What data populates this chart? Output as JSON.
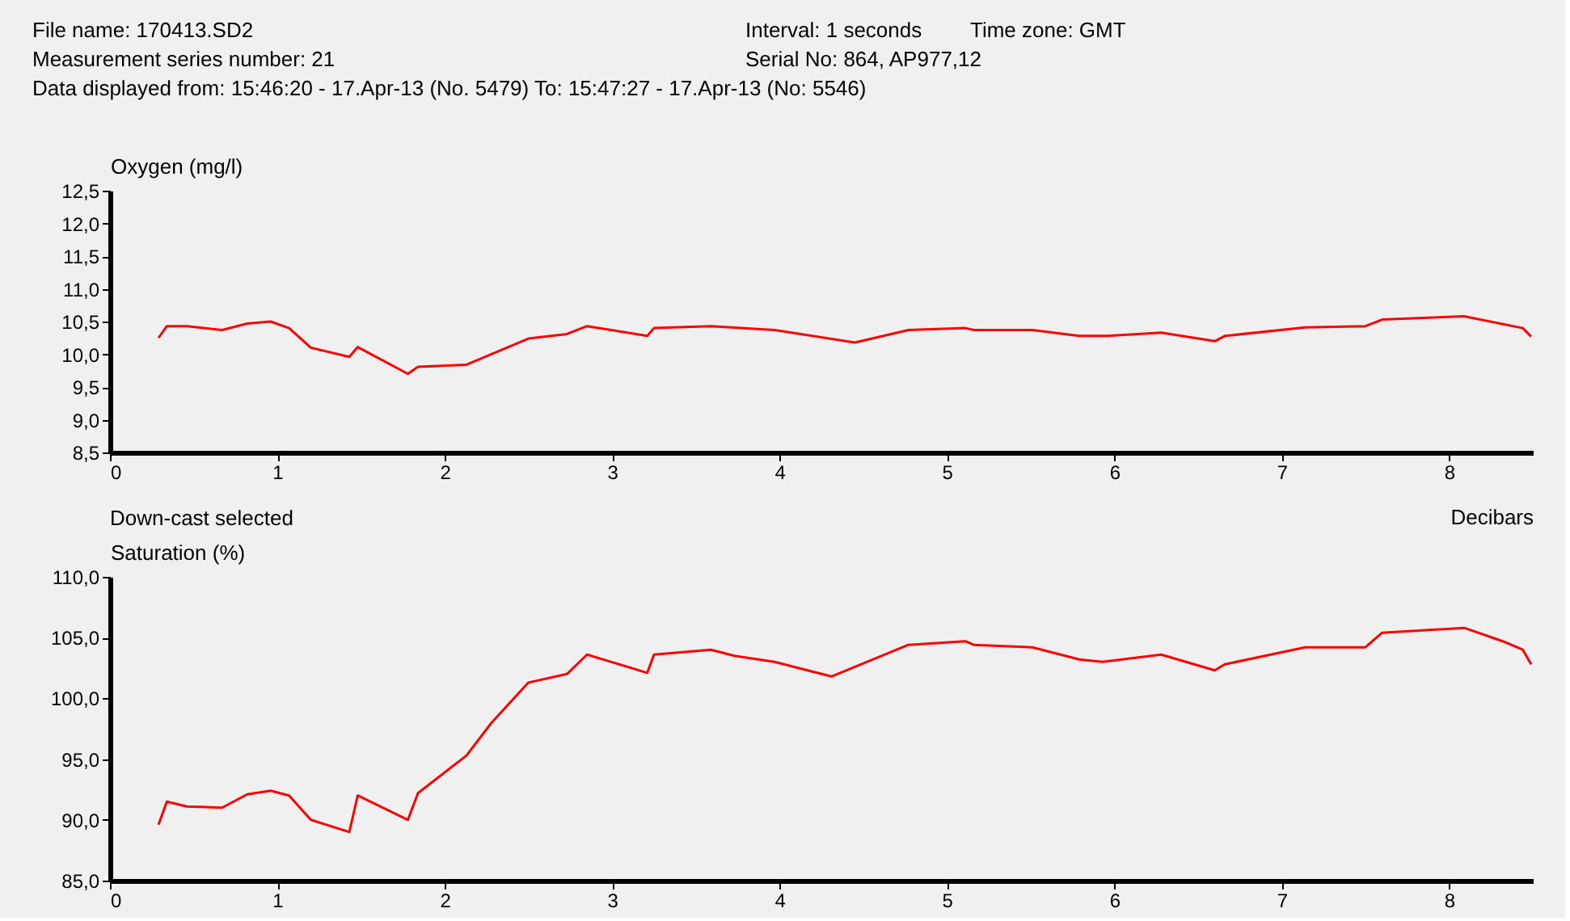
{
  "chart_data": [
    {
      "type": "line",
      "ylabel": "Oxygen (mg/l)",
      "annotations": [
        "File name: 170413.SD2",
        "Measurement series number: 21",
        "Data displayed from: 15:46:20 - 17.Apr-13 (No. 5479)   To: 15:47:27 - 17.Apr-13 (No: 5546)",
        "Interval: 1 seconds",
        "Time zone: GMT",
        "Serial No: 864, AP977,12"
      ],
      "series": [
        {
          "color": "#ff0000",
          "x": [
            0.29,
            0.34,
            0.46,
            0.67,
            0.82,
            0.96,
            1.07,
            1.2,
            1.43,
            1.48,
            1.78,
            1.84,
            2.13,
            2.5,
            2.73,
            2.85,
            3.21,
            3.25,
            3.59,
            3.97,
            4.45,
            4.77,
            5.11,
            5.16,
            5.51,
            5.79,
            5.96,
            6.28,
            6.6,
            6.66,
            7.14,
            7.5,
            7.6,
            8.09,
            8.44,
            8.49
          ],
          "values": [
            10.25,
            10.43,
            10.43,
            10.37,
            10.47,
            10.5,
            10.4,
            10.1,
            9.96,
            10.11,
            9.7,
            9.81,
            9.84,
            10.24,
            10.31,
            10.43,
            10.28,
            10.4,
            10.43,
            10.37,
            10.18,
            10.37,
            10.4,
            10.37,
            10.37,
            10.28,
            10.28,
            10.33,
            10.2,
            10.28,
            10.41,
            10.43,
            10.53,
            10.58,
            10.4,
            10.27
          ]
        }
      ],
      "xlim": [
        0,
        8.5
      ],
      "xticks": [
        0,
        1,
        2,
        3,
        4,
        5,
        6,
        7,
        8
      ],
      "ylim": [
        8.5,
        12.5
      ],
      "yticks": [
        {
          "value": 8.5,
          "label": "8,5"
        },
        {
          "value": 9,
          "label": "9,0"
        },
        {
          "value": 9.5,
          "label": "9,5"
        },
        {
          "value": 10,
          "label": "10,0"
        },
        {
          "value": 10.5,
          "label": "10,5"
        },
        {
          "value": 11,
          "label": "11,0"
        },
        {
          "value": 11.5,
          "label": "11,5"
        },
        {
          "value": 12,
          "label": "12,0"
        },
        {
          "value": 12.5,
          "label": "12,5"
        }
      ],
      "grid": false,
      "marker": "none",
      "line_style": "solid"
    },
    {
      "type": "line",
      "ylabel": "Saturation (%)",
      "xlabel": "Decibars",
      "annotations": [
        "Down-cast selected"
      ],
      "series": [
        {
          "color": "#ff0000",
          "x": [
            0.29,
            0.34,
            0.46,
            0.67,
            0.82,
            0.96,
            1.07,
            1.2,
            1.43,
            1.48,
            1.78,
            1.84,
            2.13,
            2.28,
            2.5,
            2.73,
            2.85,
            3.21,
            3.25,
            3.59,
            3.73,
            3.97,
            4.31,
            4.77,
            5.11,
            5.16,
            5.51,
            5.79,
            5.93,
            6.28,
            6.6,
            6.66,
            7.14,
            7.5,
            7.6,
            8.09,
            8.32,
            8.44,
            8.49
          ],
          "values": [
            89.6,
            91.5,
            91.1,
            91.0,
            92.1,
            92.4,
            92.0,
            90.0,
            89.0,
            92.0,
            90.0,
            92.2,
            95.3,
            98.0,
            101.3,
            102.0,
            103.6,
            102.1,
            103.6,
            104.0,
            103.5,
            103.0,
            101.8,
            104.4,
            104.7,
            104.4,
            104.2,
            103.2,
            103.0,
            103.6,
            102.3,
            102.8,
            104.2,
            104.2,
            105.4,
            105.8,
            104.7,
            104.0,
            102.8
          ]
        }
      ],
      "xlim": [
        0,
        8.5
      ],
      "xticks": [
        0,
        1,
        2,
        3,
        4,
        5,
        6,
        7,
        8
      ],
      "ylim": [
        85,
        110
      ],
      "yticks": [
        {
          "value": 85,
          "label": "85,0"
        },
        {
          "value": 90,
          "label": "90,0"
        },
        {
          "value": 95,
          "label": "95,0"
        },
        {
          "value": 100,
          "label": "100,0"
        },
        {
          "value": 105,
          "label": "105,0"
        },
        {
          "value": 110,
          "label": "110,0"
        }
      ],
      "grid": false,
      "marker": "none",
      "line_style": "solid"
    }
  ]
}
